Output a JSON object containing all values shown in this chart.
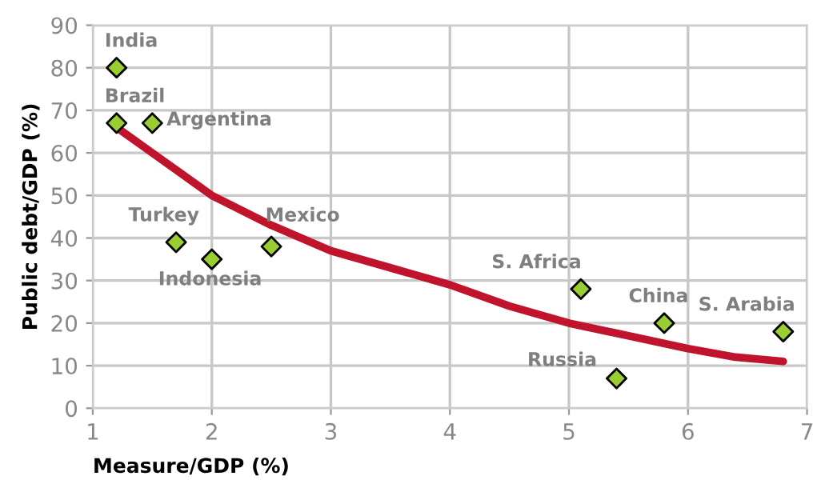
{
  "chart_data": {
    "type": "scatter",
    "xlabel": "Measure/GDP (%)",
    "ylabel": "Public debt/GDP (%)",
    "xlim": [
      1,
      7
    ],
    "xticks": [
      1,
      2,
      3,
      4,
      5,
      6,
      7
    ],
    "ylim": [
      0,
      90
    ],
    "yticks": [
      0,
      10,
      20,
      30,
      40,
      50,
      60,
      70,
      80,
      90
    ],
    "grid": true,
    "series": [
      {
        "marker": "diamond",
        "color": "#9acd32",
        "x": [
          1.2,
          1.2,
          1.5,
          1.7,
          2.0,
          2.5,
          5.1,
          5.8,
          6.8,
          5.4
        ],
        "values": [
          80,
          67,
          67,
          39,
          35,
          38,
          28,
          20,
          18,
          7
        ]
      },
      {
        "type": "line",
        "marker": "none",
        "color": "#c0142c",
        "x": [
          1.2,
          1.5,
          2,
          2.5,
          3,
          3.5,
          4,
          4.5,
          5,
          5.5,
          6,
          6.4,
          6.8
        ],
        "values": [
          66,
          60,
          50,
          43,
          37,
          33,
          29,
          24,
          20,
          17,
          14,
          12,
          11
        ]
      }
    ],
    "annotations": [
      {
        "text": "India",
        "x": 1.2,
        "y": 80
      },
      {
        "text": "Brazil",
        "x": 1.2,
        "y": 67
      },
      {
        "text": "Argentina",
        "x": 1.5,
        "y": 67
      },
      {
        "text": "Turkey",
        "x": 1.7,
        "y": 39
      },
      {
        "text": "Indonesia",
        "x": 2.0,
        "y": 35
      },
      {
        "text": "Mexico",
        "x": 2.5,
        "y": 38
      },
      {
        "text": "S. Africa",
        "x": 5.1,
        "y": 28
      },
      {
        "text": "China",
        "x": 5.8,
        "y": 20
      },
      {
        "text": "S. Arabia",
        "x": 6.8,
        "y": 18
      },
      {
        "text": "Russia",
        "x": 5.4,
        "y": 7
      }
    ]
  }
}
